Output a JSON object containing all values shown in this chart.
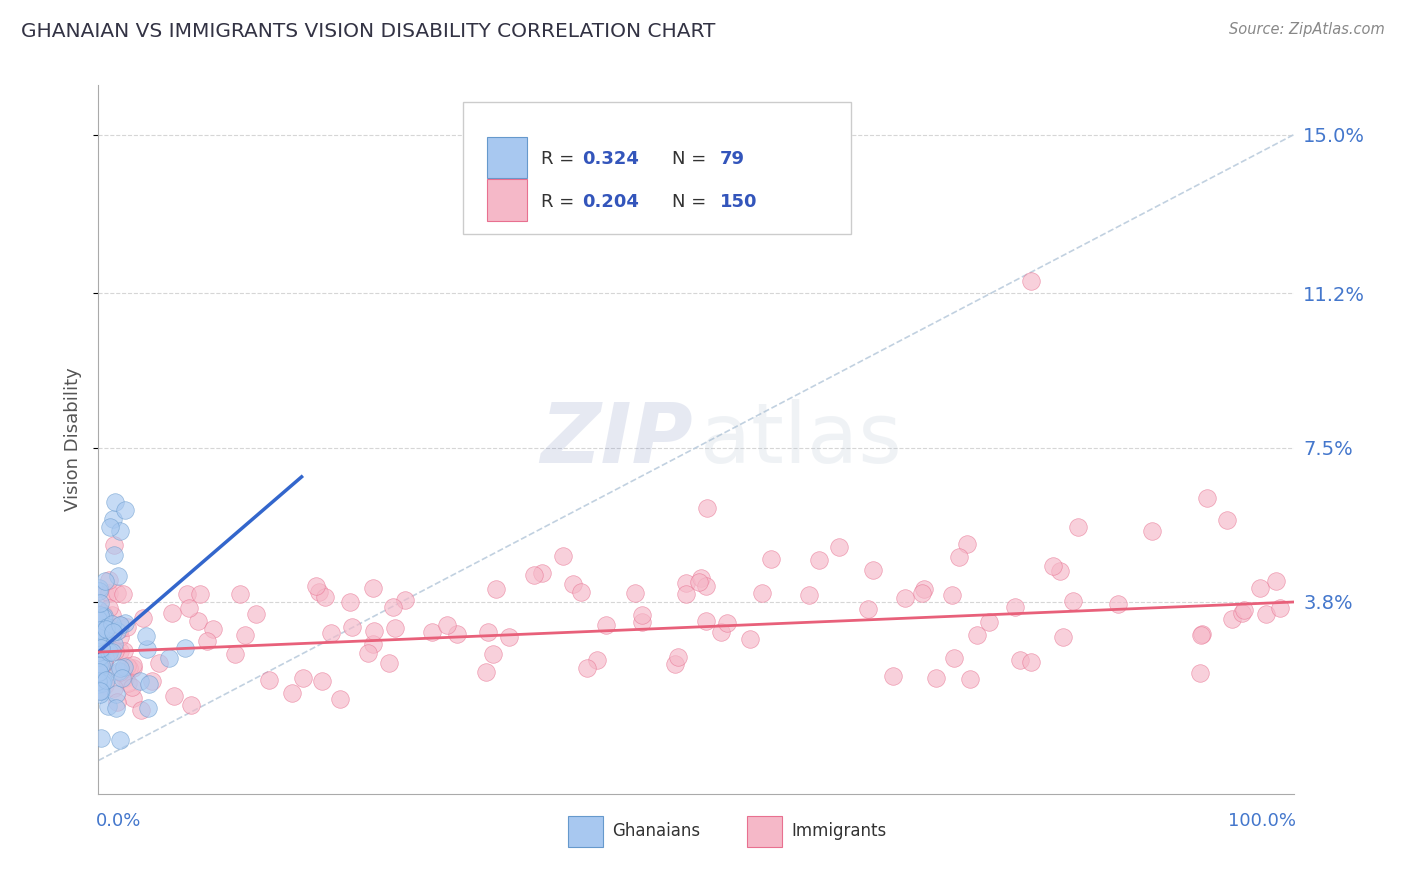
{
  "title": "GHANAIAN VS IMMIGRANTS VISION DISABILITY CORRELATION CHART",
  "source": "Source: ZipAtlas.com",
  "ylabel": "Vision Disability",
  "ylim": [
    -0.008,
    0.162
  ],
  "xlim": [
    0.0,
    1.0
  ],
  "ghanaian_R": 0.324,
  "ghanaian_N": 79,
  "immigrant_R": 0.204,
  "immigrant_N": 150,
  "ghanaian_color": "#A8C8F0",
  "immigrant_color": "#F5B8C8",
  "ghanaian_edge_color": "#6699CC",
  "immigrant_edge_color": "#E87090",
  "ghanaian_line_color": "#3366CC",
  "immigrant_line_color": "#E8607A",
  "legend_text_color": "#3355BB",
  "title_color": "#333344",
  "bg_color": "#FFFFFF",
  "grid_color": "#CCCCCC",
  "ytick_vals": [
    0.038,
    0.075,
    0.112,
    0.15
  ],
  "ytick_labels": [
    "3.8%",
    "7.5%",
    "11.2%",
    "15.0%"
  ],
  "right_label_color": "#4477CC",
  "diag_color": "#BBCCDD",
  "watermark_zip_color": "#7788BB",
  "watermark_atlas_color": "#AABBCC"
}
